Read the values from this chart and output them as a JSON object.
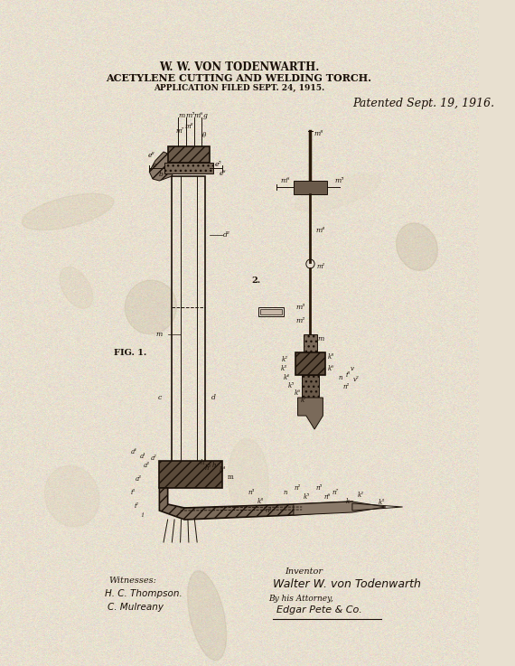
{
  "bg_color": "#e8e0d0",
  "paper_texture": true,
  "title_line1": "W. W. VON TODENWARTH.",
  "title_line2": "ACETYLENE CUTTING AND WELDING TORCH.",
  "title_line3": "APPLICATION FILED SEPT. 24, 1915.",
  "patent_date": "Patented Sept. 19, 1916.",
  "witness_label": "Witnesses:",
  "witness1": "H. C. Thompson.",
  "witness2": "C. Mulreany",
  "inventor_label": "Inventor",
  "inventor_name": "Walter W. von Todenwarth",
  "attorney_text": "By his Attorney,",
  "attorney_sig": "Edgar Pete & Co.",
  "fig1_label": "FIG. 1.",
  "fig2_label": "2.",
  "title_fontsize": 8,
  "patent_date_fontsize": 9,
  "line_color": "#1a1008",
  "bg_rgb": [
    232,
    224,
    208
  ]
}
